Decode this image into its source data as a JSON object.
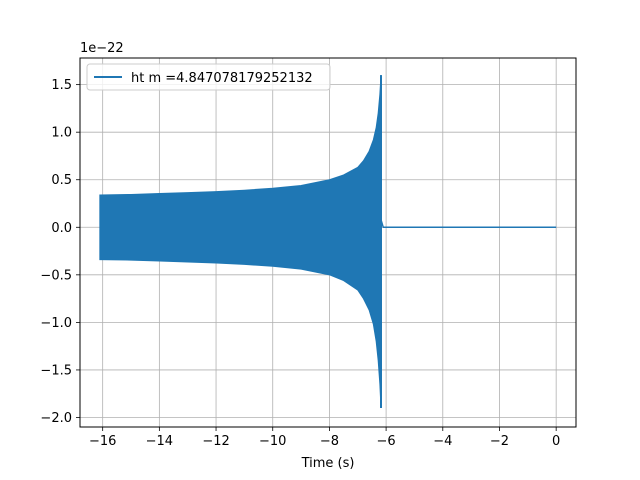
{
  "chart_data": {
    "type": "line",
    "xlabel": "Time (s)",
    "ylabel": "",
    "y_offset_label": "1e−22",
    "xlim": [
      -16.8,
      0.7
    ],
    "ylim": [
      -2.1,
      1.78
    ],
    "x_ticks": [
      -16,
      -14,
      -12,
      -10,
      -8,
      -6,
      -4,
      -2,
      0
    ],
    "x_tick_labels": [
      "−16",
      "−14",
      "−12",
      "−10",
      "−8",
      "−6",
      "−4",
      "−2",
      "0"
    ],
    "y_ticks": [
      -2.0,
      -1.5,
      -1.0,
      -0.5,
      0.0,
      0.5,
      1.0,
      1.5
    ],
    "y_tick_labels": [
      "−2.0",
      "−1.5",
      "−1.0",
      "−0.5",
      "0.0",
      "0.5",
      "1.0",
      "1.5"
    ],
    "grid": true,
    "legend_position": "top-left",
    "series": [
      {
        "name": "ht m =4.847078179252132",
        "color": "#1f77b4",
        "envelope_x": [
          -16.1,
          -15,
          -14,
          -13,
          -12,
          -11,
          -10,
          -9,
          -8,
          -7.5,
          -7,
          -6.8,
          -6.6,
          -6.45,
          -6.35,
          -6.28,
          -6.22,
          -6.18
        ],
        "envelope_upper": [
          0.34,
          0.345,
          0.355,
          0.365,
          0.375,
          0.39,
          0.41,
          0.44,
          0.5,
          0.55,
          0.63,
          0.7,
          0.8,
          0.92,
          1.05,
          1.2,
          1.4,
          1.6
        ],
        "envelope_lower": [
          -0.34,
          -0.345,
          -0.355,
          -0.365,
          -0.375,
          -0.39,
          -0.41,
          -0.44,
          -0.5,
          -0.56,
          -0.66,
          -0.75,
          -0.87,
          -1.02,
          -1.2,
          -1.4,
          -1.65,
          -1.9
        ],
        "ringdown_x": [
          -6.18,
          -6.1,
          0.0
        ],
        "ringdown_y": [
          0.08,
          0.0,
          0.0
        ]
      }
    ]
  }
}
